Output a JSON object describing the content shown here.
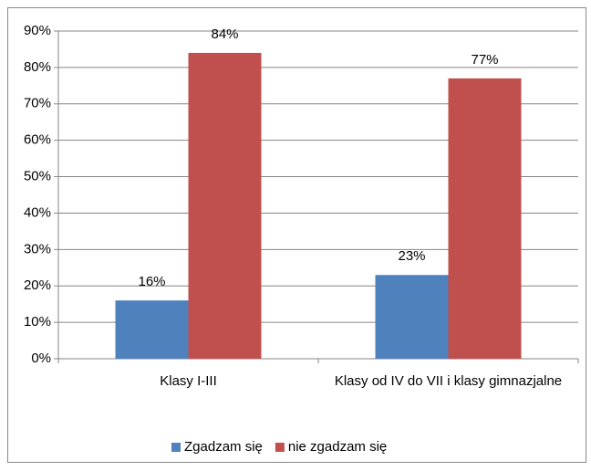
{
  "chart_data": {
    "type": "bar",
    "categories": [
      "Klasy I-III",
      "Klasy od IV do VII i klasy gimnazjalne"
    ],
    "series": [
      {
        "name": "Zgadzam się",
        "color": "#4f81bd",
        "values": [
          16,
          23
        ],
        "value_labels": [
          "16%",
          "23%"
        ]
      },
      {
        "name": "nie zgadzam się",
        "color": "#c0504d",
        "values": [
          84,
          77
        ],
        "value_labels": [
          "84%",
          "77%"
        ]
      }
    ],
    "ylim": [
      0,
      90
    ],
    "yticks": [
      {
        "value": 0,
        "label": "0%"
      },
      {
        "value": 10,
        "label": "10%"
      },
      {
        "value": 20,
        "label": "20%"
      },
      {
        "value": 30,
        "label": "30%"
      },
      {
        "value": 40,
        "label": "40%"
      },
      {
        "value": 50,
        "label": "50%"
      },
      {
        "value": 60,
        "label": "60%"
      },
      {
        "value": 70,
        "label": "70%"
      },
      {
        "value": 80,
        "label": "80%"
      },
      {
        "value": 90,
        "label": "90%"
      }
    ],
    "grid": true,
    "legend": "bottom"
  }
}
